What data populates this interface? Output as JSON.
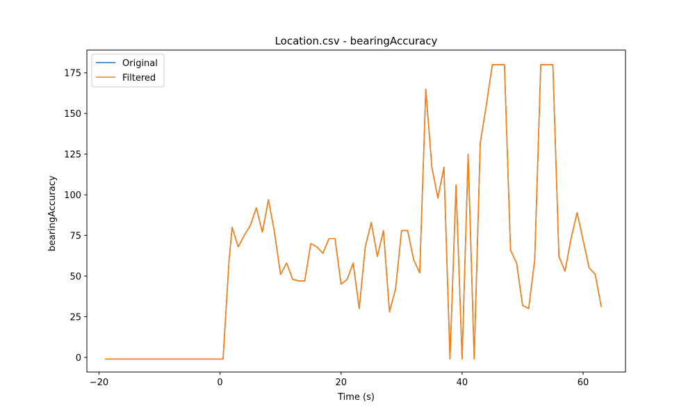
{
  "chart_data": {
    "type": "line",
    "title": "Location.csv - bearingAccuracy",
    "xlabel": "Time (s)",
    "ylabel": "bearingAccuracy",
    "xlim": [
      -22,
      67
    ],
    "ylim": [
      -9,
      189
    ],
    "x_ticks": [
      -20,
      0,
      20,
      40,
      60
    ],
    "y_ticks": [
      0,
      25,
      50,
      75,
      100,
      125,
      150,
      175
    ],
    "grid": false,
    "legend_position": "upper-left",
    "series": [
      {
        "name": "Original",
        "color": "#1f77b4",
        "x": [
          -19,
          0.5,
          1.5,
          2,
          3,
          4,
          5,
          6,
          7,
          8,
          9,
          10,
          11,
          12,
          13,
          14,
          15,
          16,
          17,
          18,
          19,
          20,
          21,
          22,
          23,
          24,
          25,
          26,
          27,
          28,
          29,
          30,
          31,
          32,
          33,
          34,
          35,
          36,
          37,
          38,
          39,
          40,
          41,
          42,
          43,
          44,
          45,
          46,
          47,
          48,
          49,
          50,
          51,
          52,
          53,
          54,
          55,
          56,
          57,
          58,
          59,
          60,
          61,
          62,
          63
        ],
        "y": [
          -1,
          -1,
          60,
          80,
          68,
          75,
          81,
          92,
          77,
          97,
          77,
          51,
          58,
          48,
          47,
          47,
          70,
          68,
          64,
          73,
          73,
          45,
          48,
          58,
          30,
          68,
          83,
          62,
          78,
          28,
          42,
          78,
          78,
          60,
          52,
          165,
          117,
          98,
          117,
          -1,
          106,
          -1,
          125,
          -1,
          132,
          155,
          180,
          180,
          180,
          66,
          58,
          32,
          30,
          60,
          180,
          180,
          180,
          62,
          53,
          73,
          89,
          72,
          55,
          51,
          31
        ]
      },
      {
        "name": "Filtered",
        "color": "#ff7f0e",
        "x": [
          -19,
          0.5,
          1.5,
          2,
          3,
          4,
          5,
          6,
          7,
          8,
          9,
          10,
          11,
          12,
          13,
          14,
          15,
          16,
          17,
          18,
          19,
          20,
          21,
          22,
          23,
          24,
          25,
          26,
          27,
          28,
          29,
          30,
          31,
          32,
          33,
          34,
          35,
          36,
          37,
          38,
          39,
          40,
          41,
          42,
          43,
          44,
          45,
          46,
          47,
          48,
          49,
          50,
          51,
          52,
          53,
          54,
          55,
          56,
          57,
          58,
          59,
          60,
          61,
          62,
          63
        ],
        "y": [
          -1,
          -1,
          60,
          80,
          68,
          75,
          81,
          92,
          77,
          97,
          77,
          51,
          58,
          48,
          47,
          47,
          70,
          68,
          64,
          73,
          73,
          45,
          48,
          58,
          30,
          68,
          83,
          62,
          78,
          28,
          42,
          78,
          78,
          60,
          52,
          165,
          117,
          98,
          117,
          -1,
          106,
          -1,
          125,
          -1,
          132,
          155,
          180,
          180,
          180,
          66,
          58,
          32,
          30,
          60,
          180,
          180,
          180,
          62,
          53,
          73,
          89,
          72,
          55,
          51,
          31
        ]
      }
    ]
  }
}
